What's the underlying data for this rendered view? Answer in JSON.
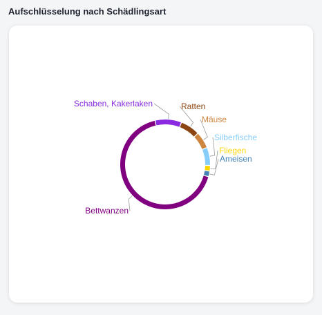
{
  "header": {
    "title": "Aufschlüsselung nach Schädlingsart"
  },
  "chart_data": {
    "type": "pie",
    "variant": "donut",
    "title": "",
    "legend": "none",
    "labels_outside": true,
    "slices": [
      {
        "label": "Schaben, Kakerlaken",
        "value": 9.5,
        "color": "#8a2be2"
      },
      {
        "label": "Ratten",
        "value": 7,
        "color": "#8b4513"
      },
      {
        "label": "Mäuse",
        "value": 6,
        "color": "#cd853f"
      },
      {
        "label": "Silberfische",
        "value": 6.5,
        "color": "#87cefa"
      },
      {
        "label": "Fliegen",
        "value": 2,
        "color": "#ffd700"
      },
      {
        "label": "Ameisen",
        "value": 2,
        "color": "#4682b4"
      },
      {
        "label": "Bettwanzen",
        "value": 67,
        "color": "#800080"
      }
    ]
  }
}
